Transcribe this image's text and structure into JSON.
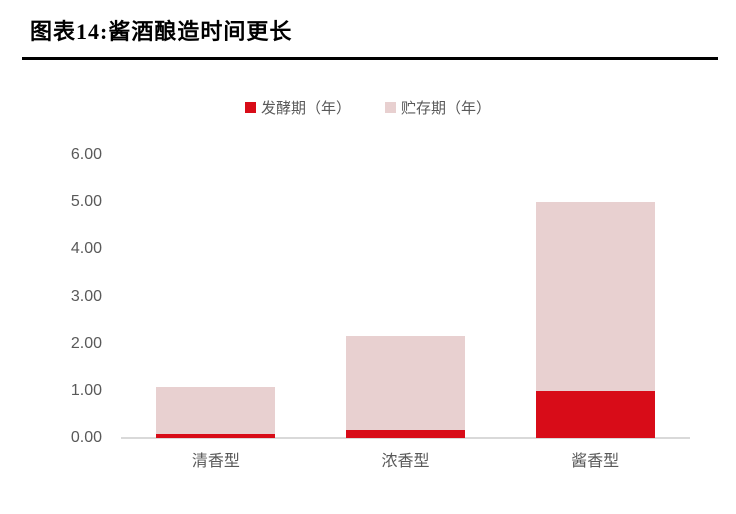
{
  "figure": {
    "title": "图表14:酱酒酿造时间更长"
  },
  "chart_data": {
    "type": "bar",
    "stacked": true,
    "title": "图表14:酱酒酿造时间更长",
    "categories": [
      "清香型",
      "浓香型",
      "酱香型"
    ],
    "series": [
      {
        "name": "发酵期（年）",
        "color": "#D80C18",
        "values": [
          0.08,
          0.17,
          1.0
        ]
      },
      {
        "name": "贮存期（年）",
        "color": "#E8D0D0",
        "values": [
          1.0,
          2.0,
          4.0
        ]
      }
    ],
    "totals": [
      1.08,
      2.17,
      5.0
    ],
    "ylim": [
      0,
      6
    ],
    "y_tick_labels": [
      "6.00",
      "5.00",
      "4.00",
      "3.00",
      "2.00",
      "1.00",
      "0.00"
    ],
    "xlabel": "",
    "ylabel": "",
    "grid": false,
    "legend_position": "top-center"
  },
  "colors": {
    "title_text": "#000000",
    "title_rule": "#000000",
    "axis_line": "#D9D9D9",
    "label_text": "#595959",
    "background": "#FFFFFF"
  }
}
